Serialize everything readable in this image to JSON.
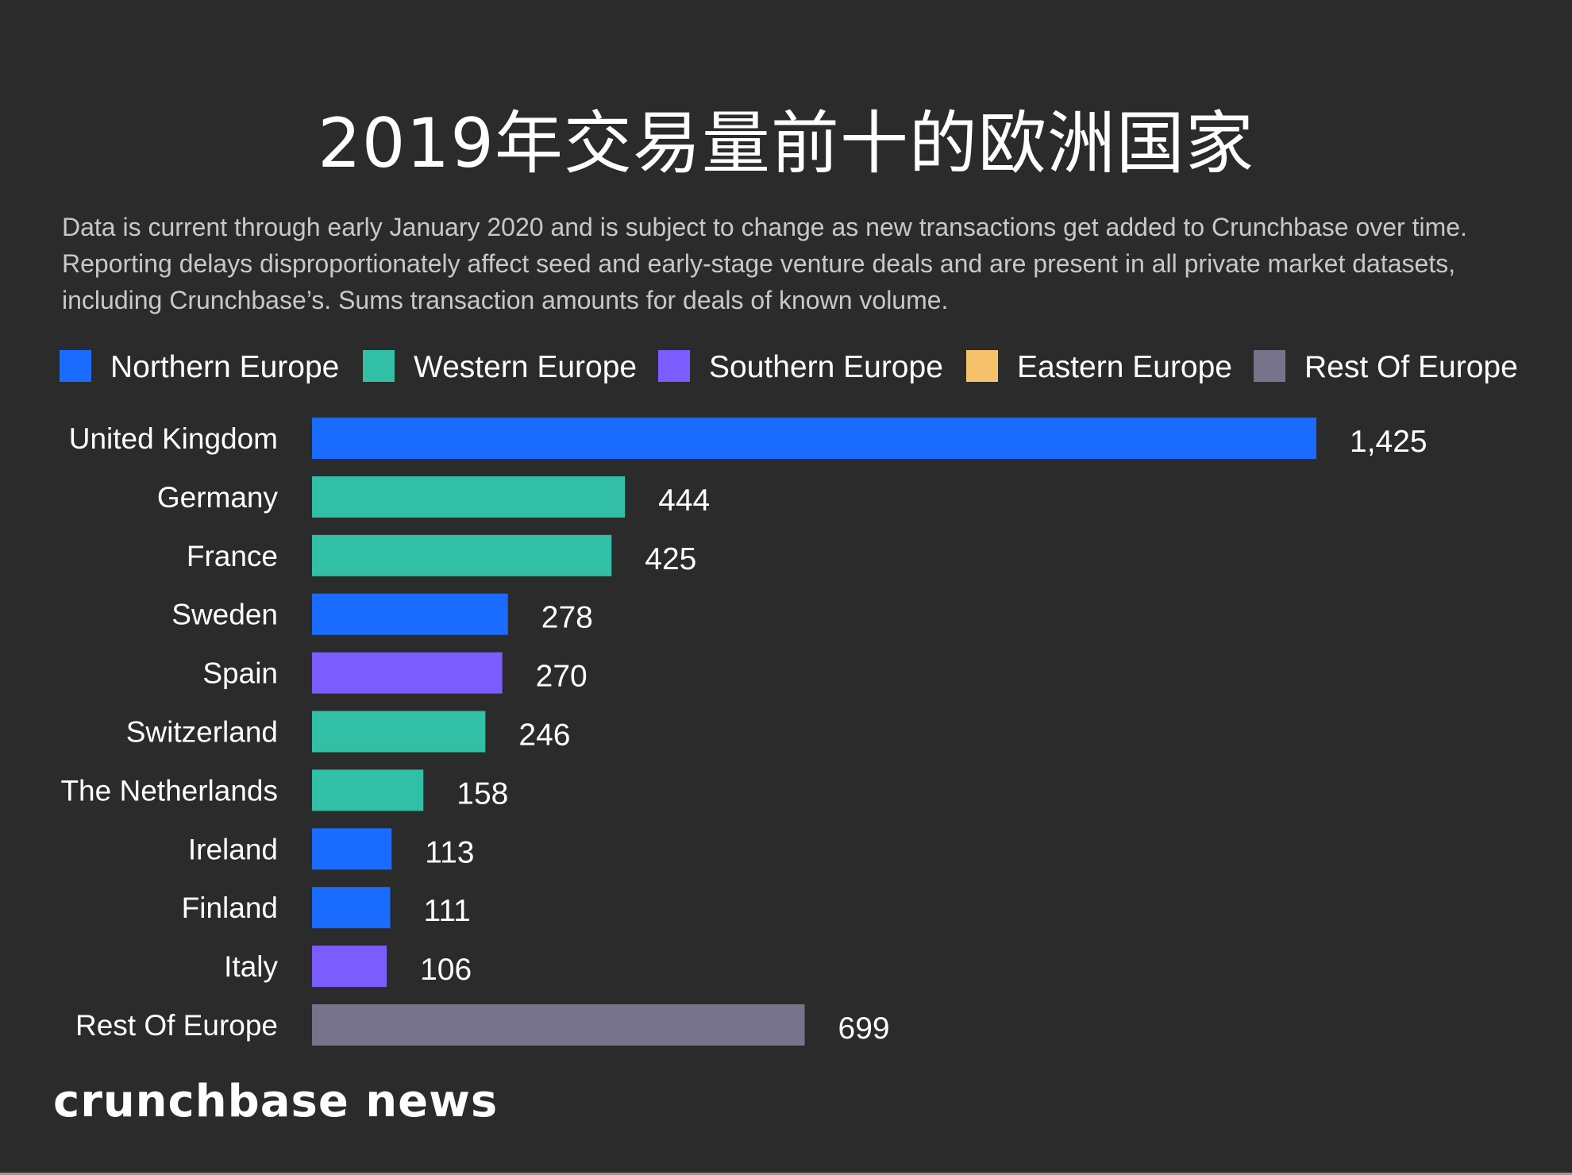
{
  "header": {
    "title": "2019年交易量前十的欧洲国家",
    "subtitle": "Data is current through early January 2020 and is subject to change as new transactions get added to Crunchbase over time. Reporting delays disproportionately affect seed and early-stage venture deals and are present in all private market datasets, including Crunchbase’s. Sums transaction amounts for deals of known volume."
  },
  "legend": [
    {
      "label": "Northern Europe",
      "color": "#1a6bff"
    },
    {
      "label": "Western Europe",
      "color": "#31bfa6"
    },
    {
      "label": "Southern Europe",
      "color": "#7b5cff"
    },
    {
      "label": "Eastern Europe",
      "color": "#f5c26b"
    },
    {
      "label": "Rest Of Europe",
      "color": "#77738a"
    }
  ],
  "chart_data": {
    "type": "bar",
    "orientation": "horizontal",
    "title": "2019年交易量前十的欧洲国家",
    "categories": [
      "United Kingdom",
      "Germany",
      "France",
      "Sweden",
      "Spain",
      "Switzerland",
      "The Netherlands",
      "Ireland",
      "Finland",
      "Italy",
      "Rest Of Europe"
    ],
    "values": [
      1425,
      444,
      425,
      278,
      270,
      246,
      158,
      113,
      111,
      106,
      699
    ],
    "value_labels": [
      "1,425",
      "444",
      "425",
      "278",
      "270",
      "246",
      "158",
      "113",
      "111",
      "106",
      "699"
    ],
    "regions": [
      "Northern Europe",
      "Western Europe",
      "Western Europe",
      "Northern Europe",
      "Southern Europe",
      "Western Europe",
      "Western Europe",
      "Northern Europe",
      "Northern Europe",
      "Southern Europe",
      "Rest Of Europe"
    ],
    "xlim": [
      0,
      1425
    ],
    "grid": false,
    "legend_position": "top"
  },
  "footer": {
    "brand": "crunchbase news"
  }
}
